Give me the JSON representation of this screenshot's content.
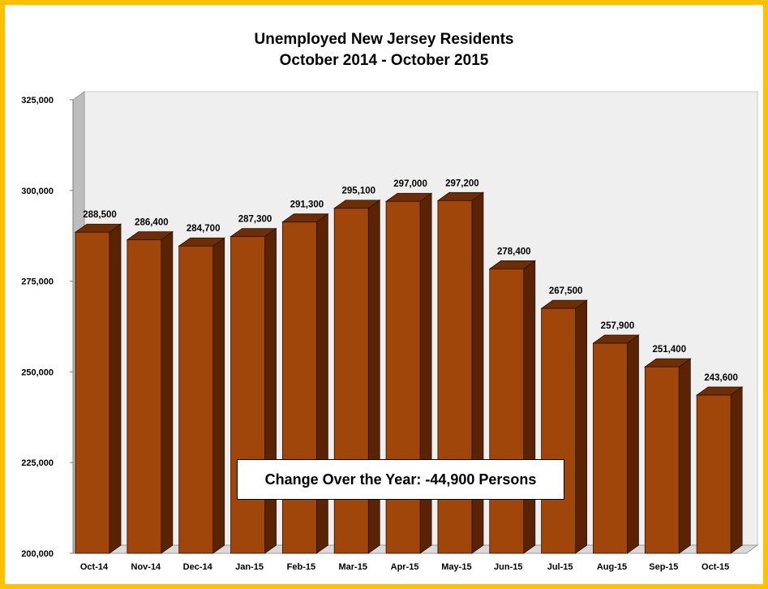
{
  "chart_data": {
    "type": "bar",
    "title": "Unemployed New Jersey Residents",
    "subtitle": "October 2014 - October 2015",
    "categories": [
      "Oct-14",
      "Nov-14",
      "Dec-14",
      "Jan-15",
      "Feb-15",
      "Mar-15",
      "Apr-15",
      "May-15",
      "Jun-15",
      "Jul-15",
      "Aug-15",
      "Sep-15",
      "Oct-15"
    ],
    "values": [
      288500,
      286400,
      284700,
      287300,
      291300,
      295100,
      297000,
      297200,
      278400,
      267500,
      257900,
      251400,
      243600
    ],
    "data_labels": [
      "288,500",
      "286,400",
      "284,700",
      "287,300",
      "291,300",
      "295,100",
      "297,000",
      "297,200",
      "278,400",
      "267,500",
      "257,900",
      "251,400",
      "243,600"
    ],
    "ylim": [
      200000,
      325000
    ],
    "yticks": [
      200000,
      225000,
      250000,
      275000,
      300000,
      325000
    ],
    "ytick_labels": [
      "200,000",
      "225,000",
      "250,000",
      "275,000",
      "300,000",
      "325,000"
    ],
    "xlabel": "",
    "ylabel": "",
    "grid": false,
    "legend": "none",
    "annotation": "Change Over the Year: -44,900 Persons",
    "colors": {
      "bar_front": "#a0460a",
      "bar_top": "#6e2e05",
      "bar_side": "#5a2404",
      "frame": "#ffc000",
      "plot_background": "#efefef"
    }
  }
}
